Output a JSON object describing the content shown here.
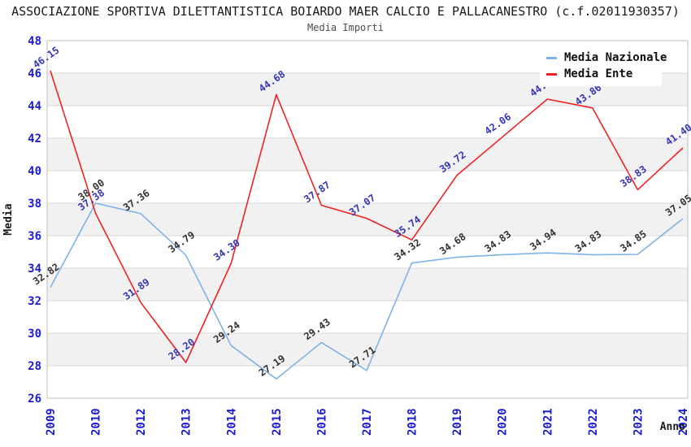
{
  "colors": {
    "background": "#ffffff",
    "tick": "#1b1bd1",
    "band": "#f1f1f1",
    "grid": "#dadada",
    "border": "#bdbdbd",
    "title": "#1a1a1a",
    "subtitle": "#4d4d4d"
  },
  "chart_data": {
    "type": "line",
    "title": "ASSOCIAZIONE SPORTIVA DILETTANTISTICA BOIARDO MAER CALCIO E PALLACANESTRO (c.f.02011930357)",
    "subtitle": "Media Importi",
    "xlabel": "Anno",
    "ylabel": "Media",
    "ylim": [
      26,
      48
    ],
    "ytick_step": 2,
    "grid": "horizontal-bands",
    "legend_position": "top-right",
    "categories": [
      "2009",
      "2010",
      "2012",
      "2013",
      "2014",
      "2015",
      "2016",
      "2017",
      "2018",
      "2019",
      "2020",
      "2021",
      "2022",
      "2023",
      "2024"
    ],
    "series": [
      {
        "name": "Media Nazionale",
        "color": "#7db3e8",
        "label_color": "#333333",
        "values": [
          32.82,
          38.0,
          37.36,
          34.79,
          29.24,
          27.19,
          29.43,
          27.71,
          34.32,
          34.68,
          34.83,
          34.94,
          34.83,
          34.85,
          37.05
        ]
      },
      {
        "name": "Media Ente",
        "color": "#ee2222",
        "label_color": "#3636b8",
        "values": [
          46.15,
          37.38,
          31.89,
          28.2,
          34.3,
          44.68,
          37.87,
          37.07,
          35.74,
          39.72,
          42.06,
          44.4,
          43.86,
          38.83,
          41.4
        ]
      }
    ]
  }
}
